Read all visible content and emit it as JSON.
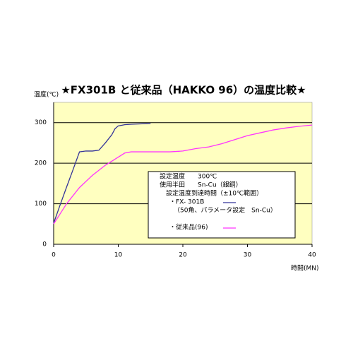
{
  "chart_data": {
    "type": "line",
    "title": "★FX301B と従来品（HAKKO 96）の温度比較★",
    "y_label": "温度(℃)",
    "x_label": "時間(MN)",
    "xlim": [
      0,
      40
    ],
    "xticks": [
      0,
      10,
      20,
      30,
      40
    ],
    "ylim": [
      0,
      350
    ],
    "yticks": [
      0,
      100,
      200,
      300
    ],
    "grid": true,
    "background": "#ffffc0",
    "annotations": [
      "設定温度　　300℃",
      "使用半田　　Sn-Cu（銀銅）",
      "　設定温度到達時間（±10℃範囲）"
    ],
    "series_note": "（50角、パラメータ設定　Sn-Cu）",
    "series": [
      {
        "name": "・FX- 301B",
        "color": "#333399",
        "x": [
          0,
          1,
          2,
          3,
          4,
          5,
          6,
          7,
          8,
          9,
          9.5,
          10,
          11,
          12,
          15
        ],
        "values": [
          52,
          97,
          141,
          184,
          228,
          230,
          230,
          232,
          250,
          270,
          285,
          292,
          295,
          296,
          298
        ]
      },
      {
        "name": "・従来品(96)",
        "color": "#ff33ff",
        "x": [
          0,
          2,
          4,
          6,
          8,
          10,
          11,
          12,
          15,
          18,
          20,
          22,
          24,
          26,
          28,
          30,
          32,
          34,
          36,
          38,
          40
        ],
        "values": [
          50,
          100,
          140,
          170,
          195,
          215,
          225,
          228,
          228,
          228,
          230,
          236,
          240,
          248,
          258,
          268,
          275,
          282,
          287,
          291,
          294
        ]
      }
    ]
  }
}
